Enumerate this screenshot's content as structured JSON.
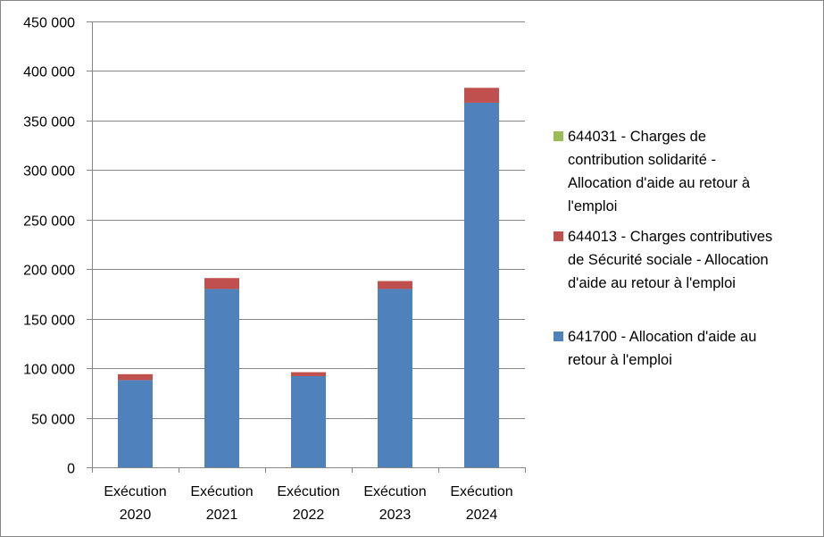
{
  "chart_data": {
    "type": "bar",
    "stacked": true,
    "categories": [
      [
        "Exécution",
        "2020"
      ],
      [
        "Exécution",
        "2021"
      ],
      [
        "Exécution",
        "2022"
      ],
      [
        "Exécution",
        "2023"
      ],
      [
        "Exécution",
        "2024"
      ]
    ],
    "ylim": [
      0,
      450000
    ],
    "yticks": [
      0,
      50000,
      100000,
      150000,
      200000,
      250000,
      300000,
      350000,
      400000,
      450000
    ],
    "ytick_labels": [
      "0",
      "50 000",
      "100 000",
      "150 000",
      "200 000",
      "250 000",
      "300 000",
      "350 000",
      "400 000",
      "450 000"
    ],
    "grid": true,
    "legend_position": "right",
    "series": [
      {
        "name": "641700 - Allocation d'aide au retour à l'emploi",
        "color": "#4F81BD",
        "values": [
          88000,
          180000,
          92000,
          180000,
          368000
        ]
      },
      {
        "name": "644013 - Charges contributives de Sécurité sociale - Allocation d'aide au retour à l'emploi",
        "color": "#C0504D",
        "values": [
          6000,
          11000,
          4000,
          8000,
          15000
        ]
      },
      {
        "name": "644031 - Charges de contribution solidarité - Allocation d'aide au retour à l'emploi",
        "color": "#9BBB59",
        "values": [
          0,
          0,
          0,
          0,
          0
        ]
      }
    ]
  },
  "legend": [
    {
      "lines": [
        "644031 - Charges de",
        "contribution solidarité -",
        "Allocation d'aide au retour à",
        "l'emploi"
      ],
      "color": "#9BBB59"
    },
    {
      "lines": [
        "644013 - Charges contributives",
        "de Sécurité sociale - Allocation",
        "d'aide au retour à l'emploi"
      ],
      "color": "#C0504D"
    },
    {
      "lines": [
        "641700 - Allocation d'aide au",
        "retour à l'emploi"
      ],
      "color": "#4F81BD"
    }
  ]
}
